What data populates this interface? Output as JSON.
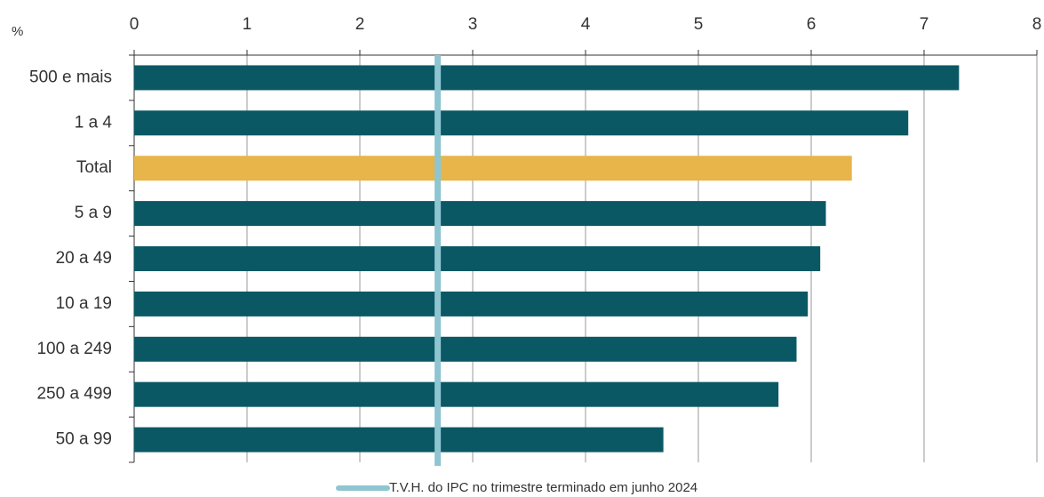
{
  "chart_data": {
    "type": "hbar",
    "unit_label": "%",
    "categories": [
      "500 e mais",
      "1 a 4",
      "Total",
      "5 a 9",
      "20 a 49",
      "10 a 19",
      "100 a 249",
      "250 a 499",
      "50 a 99"
    ],
    "values": [
      7.31,
      6.86,
      6.36,
      6.13,
      6.08,
      5.97,
      5.87,
      5.71,
      4.69
    ],
    "colors": [
      "#0b5865",
      "#0b5865",
      "#e8b54a",
      "#0b5865",
      "#0b5865",
      "#0b5865",
      "#0b5865",
      "#0b5865",
      "#0b5865"
    ],
    "xlim": [
      0,
      8
    ],
    "xticks": [
      0,
      1,
      2,
      3,
      4,
      5,
      6,
      7,
      8
    ],
    "grid": true,
    "reference": {
      "name": "T.V.H. do IPC no trimestre terminado em junho 2024",
      "value": 2.69,
      "color": "#8ec5d0"
    }
  }
}
